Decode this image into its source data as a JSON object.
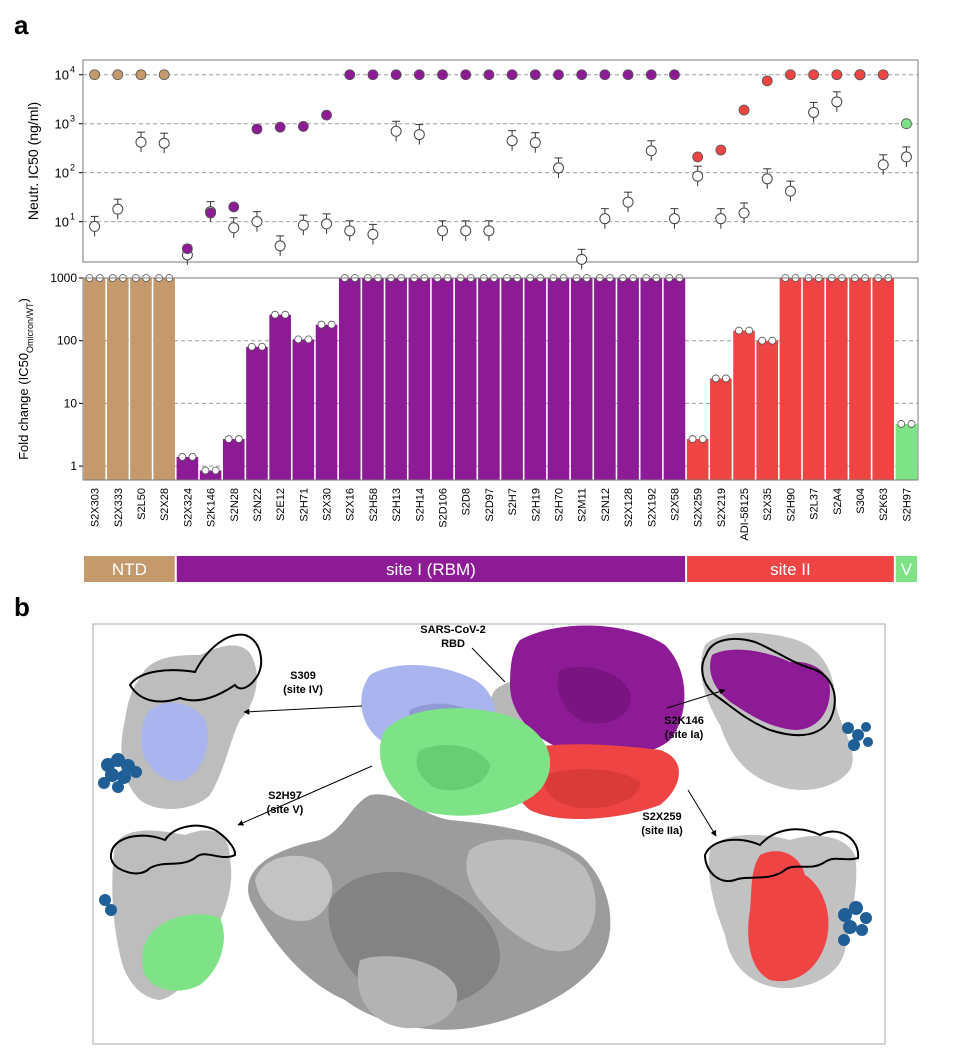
{
  "panel_a_label": "a",
  "panel_b_label": "b",
  "chart_data": [
    {
      "type": "scatter",
      "ylabel": "Neutr. IC50 (ng/ml)",
      "yscale": "log",
      "ylim": [
        1.5,
        20000
      ],
      "yticks": [
        {
          "v": 10,
          "e": "1"
        },
        {
          "v": 100,
          "e": "2"
        },
        {
          "v": 1000,
          "e": "3"
        },
        {
          "v": 10000,
          "e": "4"
        }
      ],
      "grid": true,
      "antibodies": [
        "S2X303",
        "S2X333",
        "S2L50",
        "S2X28",
        "S2X324",
        "S2K146",
        "S2N28",
        "S2N22",
        "S2E12",
        "S2H71",
        "S2X30",
        "S2X16",
        "S2H58",
        "S2H13",
        "S2H14",
        "S2D106",
        "S2D8",
        "S2D97",
        "S2H7",
        "S2H19",
        "S2H70",
        "S2M11",
        "S2N12",
        "S2X128",
        "S2X192",
        "S2X58",
        "S2X259",
        "S2X219",
        "ADI-58125",
        "S2X35",
        "S2H90",
        "S2L37",
        "S2A4",
        "S304",
        "S2K63",
        "S2H97"
      ],
      "series": [
        {
          "name": "Omicron",
          "values": [
            10000,
            10000,
            10000,
            10000,
            2.8,
            15,
            20,
            780,
            850,
            880,
            1500,
            10000,
            10000,
            10000,
            10000,
            10000,
            10000,
            10000,
            10000,
            10000,
            10000,
            10000,
            10000,
            10000,
            10000,
            10000,
            210,
            290,
            1900,
            7500,
            10000,
            10000,
            10000,
            10000,
            10000,
            1000
          ]
        },
        {
          "name": "WT",
          "values": [
            8,
            18,
            420,
            400,
            2.1,
            16,
            7.5,
            10,
            3.2,
            8.5,
            9,
            6.5,
            5.5,
            700,
            600,
            6.5,
            6.5,
            6.5,
            450,
            410,
            125,
            1.7,
            11.5,
            25,
            280,
            11.5,
            85,
            11.5,
            15,
            75,
            42,
            1700,
            2800,
            10000,
            145,
            210
          ]
        }
      ]
    },
    {
      "type": "bar",
      "ylabel_main": "Fold change (IC50",
      "ylabel_sub": "Omicron",
      "ylabel_sub2": "/WT",
      "ylabel_end": ")",
      "yscale": "log",
      "ylim": [
        0.6,
        1000
      ],
      "yticks": [
        "1",
        "10",
        "100",
        "1000"
      ],
      "grid": true,
      "categories": [
        "S2X303",
        "S2X333",
        "S2L50",
        "S2X28",
        "S2X324",
        "S2K146",
        "S2N28",
        "S2N22",
        "S2E12",
        "S2H71",
        "S2X30",
        "S2X16",
        "S2H58",
        "S2H13",
        "S2H14",
        "S2D106",
        "S2D8",
        "S2D97",
        "S2H7",
        "S2H19",
        "S2H70",
        "S2M11",
        "S2N12",
        "S2X128",
        "S2X192",
        "S2X58",
        "S2X259",
        "S2X219",
        "ADI-58125",
        "S2X35",
        "S2H90",
        "S2L37",
        "S2A4",
        "S304",
        "S2K63",
        "S2H97"
      ],
      "values": [
        1000,
        1000,
        1000,
        1000,
        1.4,
        0.85,
        2.7,
        80,
        260,
        105,
        180,
        1000,
        1000,
        1000,
        1000,
        1000,
        1000,
        1000,
        1000,
        1000,
        1000,
        1000,
        1000,
        1000,
        1000,
        1000,
        2.7,
        25,
        145,
        100,
        1000,
        1000,
        1000,
        1000,
        1000,
        4.7
      ],
      "groups": [
        "NTD",
        "NTD",
        "NTD",
        "NTD",
        "RBM",
        "RBM",
        "RBM",
        "RBM",
        "RBM",
        "RBM",
        "RBM",
        "RBM",
        "RBM",
        "RBM",
        "RBM",
        "RBM",
        "RBM",
        "RBM",
        "RBM",
        "RBM",
        "RBM",
        "RBM",
        "RBM",
        "RBM",
        "RBM",
        "RBM",
        "II",
        "II",
        "II",
        "II",
        "II",
        "II",
        "II",
        "II",
        "II",
        "V"
      ]
    }
  ],
  "site_bar": [
    {
      "label": "NTD",
      "span": 4,
      "color": "#c49a6c"
    },
    {
      "label": "site I (RBM)",
      "span": 22,
      "color": "#8e1b96"
    },
    {
      "label": "site II",
      "span": 9,
      "color": "#ef4444"
    },
    {
      "label": "V",
      "span": 1,
      "color": "#7ee387"
    }
  ],
  "colors": {
    "NTD": "#c49a6c",
    "RBM": "#8e1b96",
    "II": "#ef4444",
    "V": "#7ee387",
    "S309": "#aab4ee",
    "glycan": "#1f5f96"
  },
  "panel_b": {
    "rbd_label_1": "SARS-CoV-2",
    "rbd_label_2": "RBD",
    "s309_1": "S309",
    "s309_2": "(site IV)",
    "s2h97_1": "S2H97",
    "s2h97_2": "(site V)",
    "s2k146_1": "S2K146",
    "s2k146_2": "(site Ia)",
    "s2x259_1": "S2X259",
    "s2x259_2": "(site IIa)"
  }
}
